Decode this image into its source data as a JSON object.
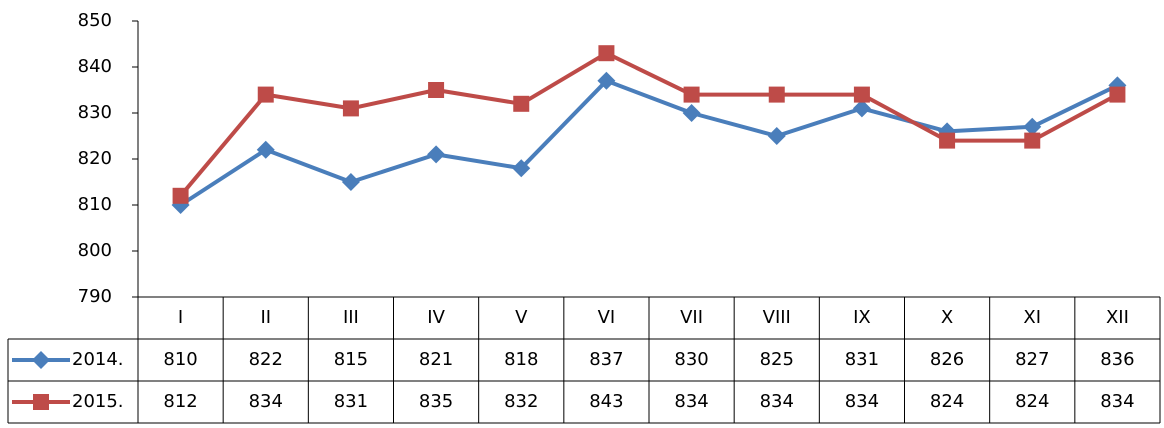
{
  "chart_data": {
    "type": "line",
    "categories": [
      "I",
      "II",
      "III",
      "IV",
      "V",
      "VI",
      "VII",
      "VIII",
      "IX",
      "X",
      "XI",
      "XII"
    ],
    "series": [
      {
        "name": "2014.",
        "color": "#4a7ebb",
        "marker": "diamond",
        "values": [
          810,
          822,
          815,
          821,
          818,
          837,
          830,
          825,
          831,
          826,
          827,
          836
        ]
      },
      {
        "name": "2015.",
        "color": "#be4b48",
        "marker": "square",
        "values": [
          812,
          834,
          831,
          835,
          832,
          843,
          834,
          834,
          834,
          824,
          824,
          834
        ]
      }
    ],
    "ylim": [
      790,
      850
    ],
    "yticks": [
      790,
      800,
      810,
      820,
      830,
      840,
      850
    ],
    "grid": false,
    "data_table": true
  }
}
